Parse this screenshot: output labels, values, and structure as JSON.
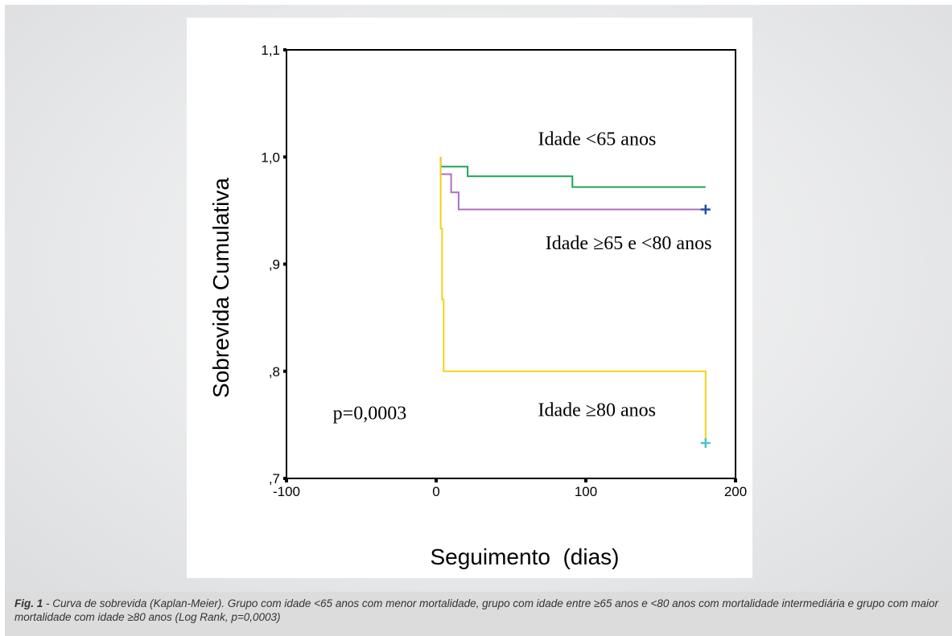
{
  "chart_data": {
    "type": "line",
    "step": true,
    "xlabel": "Seguimento  (dias)",
    "ylabel": "Sobrevida Cumulativa",
    "xlim": [
      -100,
      200
    ],
    "ylim": [
      0.7,
      1.1
    ],
    "x_ticks": [
      -100,
      0,
      100,
      200
    ],
    "x_tick_labels": [
      "-100",
      "0",
      "100",
      "200"
    ],
    "y_ticks": [
      0.7,
      0.8,
      0.9,
      1.0,
      1.1
    ],
    "y_tick_labels": [
      ",7",
      ",8",
      ",9",
      "1,0",
      "1,1"
    ],
    "grid": false,
    "series": [
      {
        "name": "Idade <65 anos",
        "color": "#1fa354",
        "x": [
          3,
          3,
          21,
          21,
          91,
          91,
          180
        ],
        "y": [
          1.0,
          0.991,
          0.991,
          0.982,
          0.982,
          0.972,
          0.972
        ],
        "censor_marker": null
      },
      {
        "name": "Idade ≥65 e <80 anos",
        "color": "#b26dbe",
        "x": [
          3,
          3,
          10,
          10,
          15,
          15,
          180
        ],
        "y": [
          1.0,
          0.984,
          0.984,
          0.967,
          0.967,
          0.951,
          0.951
        ],
        "censor_marker": {
          "x": 180,
          "y": 0.951,
          "color": "#1f4fa6"
        }
      },
      {
        "name": "Idade ≥80 anos",
        "color": "#f2d21b",
        "x": [
          3,
          3,
          4,
          4,
          5,
          5,
          180,
          180
        ],
        "y": [
          1.0,
          0.933,
          0.933,
          0.867,
          0.867,
          0.8,
          0.8,
          0.733
        ],
        "censor_marker": {
          "x": 180,
          "y": 0.733,
          "color": "#4fc3c8"
        }
      }
    ],
    "annotations": [
      {
        "text": "Idade <65 anos",
        "x": 68,
        "y": 1.011
      },
      {
        "text": "Idade ≥65 e <80 anos",
        "x": 73,
        "y": 0.914
      },
      {
        "text": "Idade ≥80 anos",
        "x": 68,
        "y": 0.758
      },
      {
        "text": "p=0,0003",
        "x": -69,
        "y": 0.755
      }
    ]
  },
  "caption": {
    "label": "Fig. 1",
    "text": " - Curva de sobrevida (Kaplan-Meier). Grupo com idade <65 anos com menor mortalidade, grupo com idade entre ≥65 anos e <80 anos com mortalidade intermediária e grupo com maior mortalidade com idade ≥80 anos (Log Rank, p=0,0003)"
  }
}
